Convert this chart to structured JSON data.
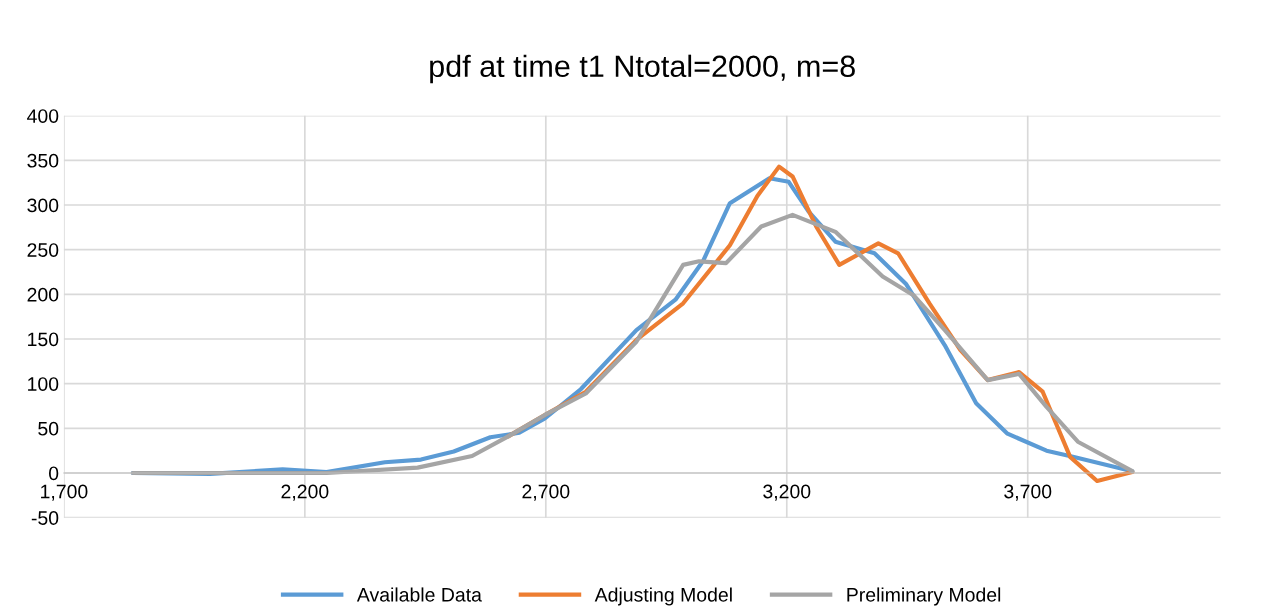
{
  "chart_data": {
    "type": "line",
    "title": "pdf at time t1 Ntotal=2000, m=8",
    "xlim": [
      1700,
      4100
    ],
    "xticks": [
      {
        "value": 1700,
        "label": "1,700"
      },
      {
        "value": 2200,
        "label": "2,200"
      },
      {
        "value": 2700,
        "label": "2,700"
      },
      {
        "value": 3200,
        "label": "3,200"
      },
      {
        "value": 3700,
        "label": "3,700"
      }
    ],
    "ylim": [
      -50,
      400
    ],
    "yticks": [
      -50,
      0,
      50,
      100,
      150,
      200,
      250,
      300,
      350,
      400
    ],
    "grid": true,
    "legend": "bottom",
    "marker": "none",
    "line_style": "solid",
    "series": [
      {
        "name": "Available Data",
        "color": "#5b9bd5",
        "x": [
          1843,
          2003,
          2154,
          2245,
          2366,
          2441,
          2509,
          2585,
          2645,
          2698,
          2773,
          2888,
          2969,
          3026,
          3082,
          3164,
          3204,
          3245,
          3301,
          3382,
          3447,
          3528,
          3593,
          3658,
          3739,
          3796,
          3917
        ],
        "values": [
          0,
          -1,
          4,
          1,
          12,
          15,
          24,
          40,
          45,
          61,
          94,
          160,
          194,
          237,
          302,
          330,
          326,
          293,
          259,
          246,
          212,
          143,
          78,
          44,
          25,
          18,
          2
        ]
      },
      {
        "name": "Adjusting Model",
        "color": "#ed7d31",
        "x": [
          2622,
          2698,
          2783,
          2888,
          2985,
          3082,
          3139,
          3184,
          3212,
          3261,
          3309,
          3390,
          3431,
          3496,
          3560,
          3617,
          3682,
          3731,
          3788,
          3844,
          3917
        ],
        "values": [
          41,
          65,
          91,
          149,
          190,
          255,
          310,
          343,
          332,
          276,
          233,
          257,
          246,
          190,
          138,
          104,
          113,
          91,
          18,
          -9,
          1
        ]
      },
      {
        "name": "Preliminary Model",
        "color": "#a5a5a5",
        "x": [
          1843,
          2245,
          2434,
          2547,
          2622,
          2698,
          2783,
          2888,
          2985,
          3018,
          3074,
          3147,
          3212,
          3301,
          3399,
          3463,
          3528,
          3617,
          3682,
          3739,
          3804,
          3917
        ],
        "values": [
          0,
          0,
          6,
          19,
          41,
          65,
          89,
          147,
          233,
          237,
          235,
          276,
          289,
          270,
          220,
          199,
          160,
          104,
          111,
          74,
          35,
          2
        ]
      }
    ]
  }
}
